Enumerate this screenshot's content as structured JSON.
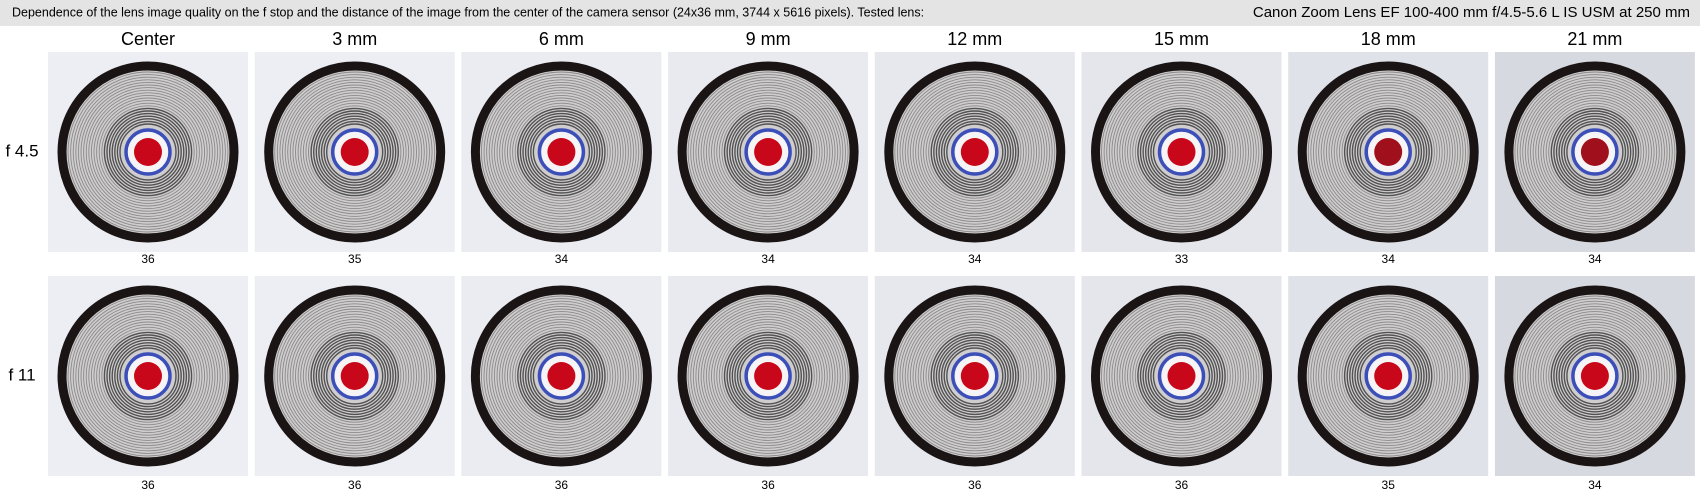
{
  "header": {
    "description": "Dependence of the lens image quality on the f stop and the distance of the image from the center of the camera sensor (24x36 mm, 3744 x 5616 pixels).  Tested lens:",
    "lens": "Canon Zoom Lens EF 100-400 mm f/4.5-5.6 L IS USM at 250 mm"
  },
  "columns": [
    "Center",
    "3 mm",
    "6 mm",
    "9 mm",
    "12 mm",
    "15 mm",
    "18 mm",
    "21 mm"
  ],
  "rows": [
    {
      "label": "f 4.5",
      "scores": [
        36,
        35,
        34,
        34,
        34,
        33,
        34,
        34
      ]
    },
    {
      "label": "f 11",
      "scores": [
        36,
        36,
        36,
        36,
        36,
        36,
        35,
        34
      ]
    }
  ]
}
